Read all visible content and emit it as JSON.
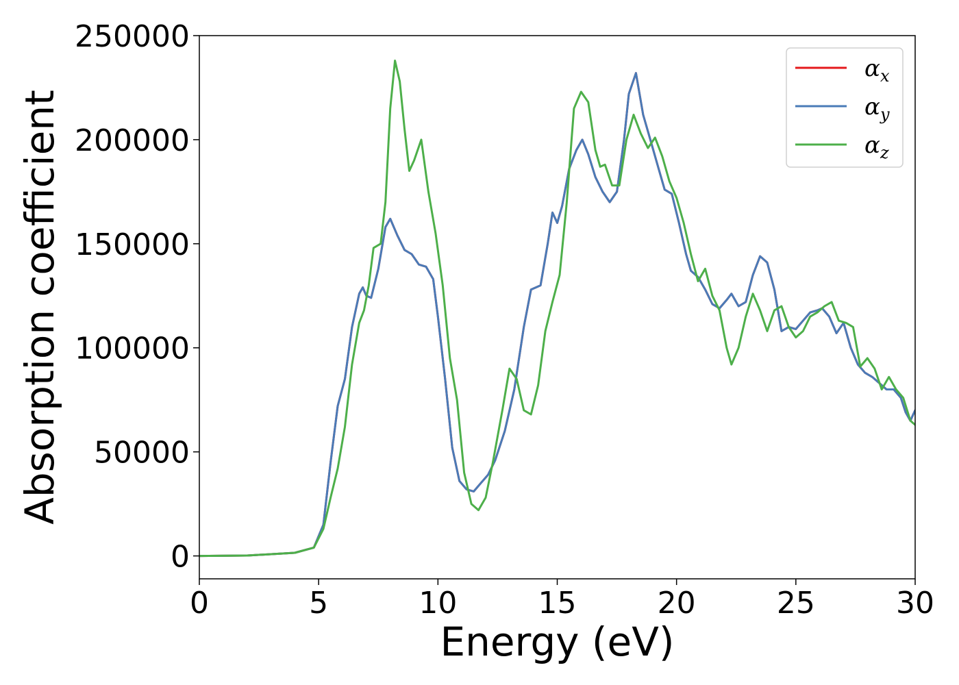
{
  "chart_data": {
    "type": "line",
    "title": "",
    "xlabel": "Energy (eV)",
    "ylabel": "Absorption coefficient",
    "xlim": [
      0,
      30
    ],
    "ylim": [
      -11000,
      250000
    ],
    "xticks": [
      0,
      5,
      10,
      15,
      20,
      25,
      30
    ],
    "yticks": [
      0,
      50000,
      100000,
      150000,
      200000,
      250000
    ],
    "grid": false,
    "legend_position": "top-right",
    "series": [
      {
        "name_symbol": "α",
        "name_sub": "x",
        "color": "#e41a1c",
        "x": [
          0,
          2,
          4,
          4.8,
          5.2,
          5.5,
          5.8,
          6.1,
          6.4,
          6.7,
          6.85,
          7.0,
          7.2,
          7.5,
          7.8,
          8.0,
          8.3,
          8.6,
          8.9,
          9.2,
          9.5,
          9.8,
          10.0,
          10.3,
          10.6,
          10.9,
          11.2,
          11.5,
          11.8,
          12.1,
          12.4,
          12.8,
          13.2,
          13.6,
          13.9,
          14.3,
          14.6,
          14.8,
          15.0,
          15.2,
          15.5,
          15.8,
          16.05,
          16.3,
          16.6,
          16.9,
          17.2,
          17.5,
          17.8,
          18.0,
          18.3,
          18.6,
          18.9,
          19.2,
          19.5,
          19.8,
          20.1,
          20.4,
          20.6,
          20.9,
          21.2,
          21.5,
          21.8,
          22.1,
          22.3,
          22.6,
          22.9,
          23.2,
          23.5,
          23.8,
          24.1,
          24.4,
          24.7,
          25.0,
          25.3,
          25.6,
          25.9,
          26.1,
          26.4,
          26.7,
          27.0,
          27.3,
          27.6,
          27.9,
          28.2,
          28.5,
          28.8,
          29.1,
          29.4,
          29.6,
          29.8,
          30.0
        ],
        "y": [
          0,
          200,
          1500,
          4000,
          15000,
          45000,
          72000,
          85000,
          110000,
          126000,
          129000,
          125000,
          124000,
          138000,
          158000,
          162000,
          154000,
          147000,
          145000,
          140000,
          139000,
          133000,
          115000,
          85000,
          52000,
          36000,
          32000,
          31000,
          35000,
          39000,
          46000,
          60000,
          80000,
          110000,
          128000,
          130000,
          150000,
          165000,
          160000,
          168000,
          186000,
          195000,
          200000,
          193000,
          182000,
          175000,
          170000,
          175000,
          200000,
          222000,
          232000,
          212000,
          200000,
          188000,
          176000,
          174000,
          160000,
          145000,
          137000,
          134000,
          128000,
          121000,
          119000,
          123000,
          126000,
          120000,
          122000,
          135000,
          144000,
          141000,
          128000,
          108000,
          110000,
          109000,
          113000,
          117000,
          118000,
          119000,
          115000,
          107000,
          112000,
          100000,
          92000,
          88000,
          86000,
          83000,
          80000,
          80000,
          76000,
          69000,
          65000,
          70000
        ]
      },
      {
        "name_symbol": "α",
        "name_sub": "y",
        "color": "#4a7bb7",
        "x": [
          0,
          2,
          4,
          4.8,
          5.2,
          5.5,
          5.8,
          6.1,
          6.4,
          6.7,
          6.85,
          7.0,
          7.2,
          7.5,
          7.8,
          8.0,
          8.3,
          8.6,
          8.9,
          9.2,
          9.5,
          9.8,
          10.0,
          10.3,
          10.6,
          10.9,
          11.2,
          11.5,
          11.8,
          12.1,
          12.4,
          12.8,
          13.2,
          13.6,
          13.9,
          14.3,
          14.6,
          14.8,
          15.0,
          15.2,
          15.5,
          15.8,
          16.05,
          16.3,
          16.6,
          16.9,
          17.2,
          17.5,
          17.8,
          18.0,
          18.3,
          18.6,
          18.9,
          19.2,
          19.5,
          19.8,
          20.1,
          20.4,
          20.6,
          20.9,
          21.2,
          21.5,
          21.8,
          22.1,
          22.3,
          22.6,
          22.9,
          23.2,
          23.5,
          23.8,
          24.1,
          24.4,
          24.7,
          25.0,
          25.3,
          25.6,
          25.9,
          26.1,
          26.4,
          26.7,
          27.0,
          27.3,
          27.6,
          27.9,
          28.2,
          28.5,
          28.8,
          29.1,
          29.4,
          29.6,
          29.8,
          30.0
        ],
        "y": [
          0,
          200,
          1500,
          4000,
          15000,
          45000,
          72000,
          85000,
          110000,
          126000,
          129000,
          125000,
          124000,
          138000,
          158000,
          162000,
          154000,
          147000,
          145000,
          140000,
          139000,
          133000,
          115000,
          85000,
          52000,
          36000,
          32000,
          31000,
          35000,
          39000,
          46000,
          60000,
          80000,
          110000,
          128000,
          130000,
          150000,
          165000,
          160000,
          168000,
          186000,
          195000,
          200000,
          193000,
          182000,
          175000,
          170000,
          175000,
          200000,
          222000,
          232000,
          212000,
          200000,
          188000,
          176000,
          174000,
          160000,
          145000,
          137000,
          134000,
          128000,
          121000,
          119000,
          123000,
          126000,
          120000,
          122000,
          135000,
          144000,
          141000,
          128000,
          108000,
          110000,
          109000,
          113000,
          117000,
          118000,
          119000,
          115000,
          107000,
          112000,
          100000,
          92000,
          88000,
          86000,
          83000,
          80000,
          80000,
          76000,
          69000,
          65000,
          70000
        ]
      },
      {
        "name_symbol": "α",
        "name_sub": "z",
        "color": "#4daf4a",
        "x": [
          0,
          2,
          4,
          4.8,
          5.2,
          5.5,
          5.8,
          6.1,
          6.4,
          6.7,
          6.9,
          7.1,
          7.3,
          7.6,
          7.8,
          8.0,
          8.2,
          8.4,
          8.6,
          8.8,
          9.0,
          9.3,
          9.6,
          9.9,
          10.2,
          10.5,
          10.8,
          11.1,
          11.4,
          11.7,
          12.0,
          12.3,
          12.7,
          13.0,
          13.3,
          13.6,
          13.9,
          14.2,
          14.5,
          14.8,
          15.1,
          15.4,
          15.7,
          16.0,
          16.3,
          16.6,
          16.8,
          17.0,
          17.3,
          17.6,
          17.9,
          18.2,
          18.5,
          18.8,
          19.1,
          19.4,
          19.7,
          20.0,
          20.3,
          20.6,
          20.9,
          21.2,
          21.5,
          21.8,
          22.1,
          22.3,
          22.6,
          22.9,
          23.2,
          23.5,
          23.8,
          24.1,
          24.4,
          24.7,
          25.0,
          25.3,
          25.6,
          25.9,
          26.2,
          26.5,
          26.8,
          27.1,
          27.4,
          27.7,
          28.0,
          28.3,
          28.6,
          28.9,
          29.2,
          29.5,
          29.8,
          30.0
        ],
        "y": [
          0,
          200,
          1500,
          4000,
          13000,
          28000,
          42000,
          62000,
          92000,
          112000,
          118000,
          130000,
          148000,
          150000,
          170000,
          215000,
          238000,
          228000,
          205000,
          185000,
          190000,
          200000,
          175000,
          155000,
          130000,
          95000,
          75000,
          40000,
          25000,
          22000,
          28000,
          45000,
          70000,
          90000,
          85000,
          70000,
          68000,
          82000,
          108000,
          122000,
          135000,
          170000,
          215000,
          223000,
          218000,
          195000,
          187000,
          188000,
          178000,
          178000,
          200000,
          212000,
          203000,
          196000,
          201000,
          192000,
          180000,
          172000,
          160000,
          145000,
          132000,
          138000,
          125000,
          118000,
          100000,
          92000,
          100000,
          115000,
          126000,
          118000,
          108000,
          118000,
          120000,
          110000,
          105000,
          108000,
          115000,
          117000,
          120000,
          122000,
          113000,
          112000,
          110000,
          91000,
          95000,
          90000,
          80000,
          86000,
          80000,
          76000,
          65000,
          63000
        ]
      }
    ]
  }
}
